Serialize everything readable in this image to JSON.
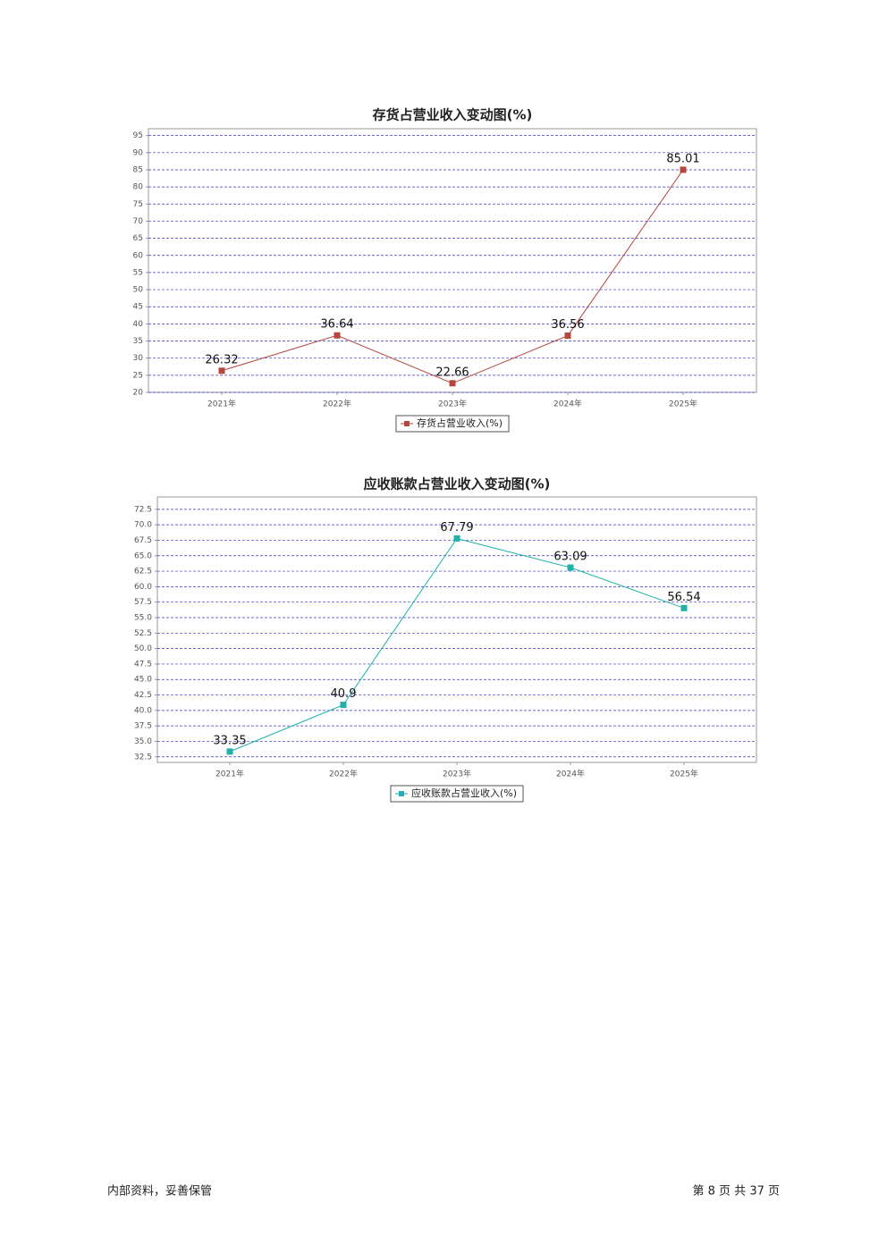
{
  "chart_data": [
    {
      "type": "line",
      "title": "存货占营业收入变动图(%)",
      "categories": [
        "2021年",
        "2022年",
        "2023年",
        "2024年",
        "2025年"
      ],
      "series": [
        {
          "name": "存货占营业收入(%)",
          "color": "#b5473f",
          "values": [
            26.32,
            36.64,
            22.66,
            36.56,
            85.01
          ]
        }
      ],
      "ylim": [
        20,
        97
      ],
      "yticks": [
        20,
        25,
        30,
        35,
        40,
        45,
        50,
        55,
        60,
        65,
        70,
        75,
        80,
        85,
        90,
        95
      ],
      "grid": true
    },
    {
      "type": "line",
      "title": "应收账款占营业收入变动图(%)",
      "categories": [
        "2021年",
        "2022年",
        "2023年",
        "2024年",
        "2025年"
      ],
      "series": [
        {
          "name": "应收账款占营业收入(%)",
          "color": "#20b2aa",
          "values": [
            33.35,
            40.9,
            67.79,
            63.09,
            56.54
          ]
        }
      ],
      "ylim": [
        31.6,
        74.5
      ],
      "yticks": [
        32.5,
        {
          "value": 35,
          "label": "35.0"
        },
        37.5,
        {
          "value": 40,
          "label": "40.0"
        },
        42.5,
        {
          "value": 45,
          "label": "45.0"
        },
        47.5,
        {
          "value": 50,
          "label": "50.0"
        },
        52.5,
        {
          "value": 55,
          "label": "55.0"
        },
        57.5,
        {
          "value": 60,
          "label": "60.0"
        },
        62.5,
        {
          "value": 65,
          "label": "65.0"
        },
        67.5,
        {
          "value": 70,
          "label": "70.0"
        },
        72.5
      ],
      "grid": true
    }
  ],
  "footer": {
    "left": "内部资料，妥善保管",
    "right": "第 8 页 共 37 页"
  }
}
